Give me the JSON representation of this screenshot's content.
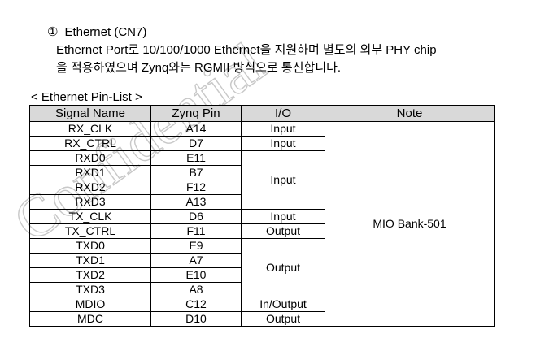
{
  "section": {
    "number": "①",
    "title": "Ethernet (CN7)",
    "description_line1": "Ethernet Port로 10/100/1000 Ethernet을 지원하며 별도의 외부 PHY chip",
    "description_line2": "을 적용하였으며 Zynq와는 RGMII 방식으로 통신합니다."
  },
  "table": {
    "caption": "< Ethernet Pin-List >",
    "headers": [
      "Signal Name",
      "Zynq Pin",
      "I/O",
      "Note"
    ],
    "rows": [
      {
        "signal": "RX_CLK",
        "pin": "A14"
      },
      {
        "signal": "RX_CTRL",
        "pin": "D7"
      },
      {
        "signal": "RXD0",
        "pin": "E11"
      },
      {
        "signal": "RXD1",
        "pin": "B7"
      },
      {
        "signal": "RXD2",
        "pin": "F12"
      },
      {
        "signal": "RXD3",
        "pin": "A13"
      },
      {
        "signal": "TX_CLK",
        "pin": "D6"
      },
      {
        "signal": "TX_CTRL",
        "pin": "F11"
      },
      {
        "signal": "TXD0",
        "pin": "E9"
      },
      {
        "signal": "TXD1",
        "pin": "A7"
      },
      {
        "signal": "TXD2",
        "pin": "E10"
      },
      {
        "signal": "TXD3",
        "pin": "A8"
      },
      {
        "signal": "MDIO",
        "pin": "C12"
      },
      {
        "signal": "MDC",
        "pin": "D10"
      }
    ],
    "io": [
      "Input",
      "Input",
      "Input",
      "Input",
      "Output",
      "Output",
      "Output",
      "In/Output",
      "Output"
    ],
    "note": "MIO Bank-501"
  },
  "watermark": "Confidential",
  "colors": {
    "header_bg": "#d9d9d9",
    "watermark": "#c8c8c8"
  }
}
